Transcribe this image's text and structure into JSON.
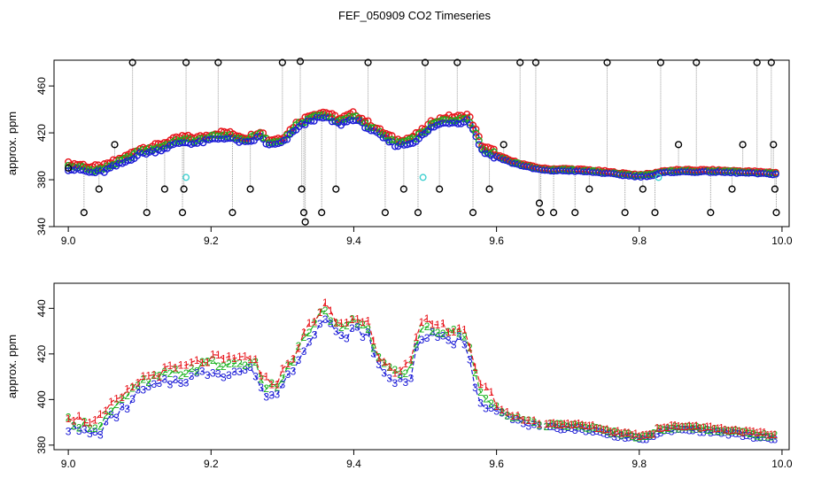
{
  "page_title": "FEF_050909  CO2 Timeseries",
  "colors": {
    "outlier": "#000000",
    "series1": "#e8141b",
    "series2": "#19b21e",
    "series3": "#1b1bd6",
    "flag": "#3fd0d0",
    "connector": "#9a9a9a"
  },
  "chart_data": [
    {
      "type": "scatter",
      "title": "FEF_050909  CO2 Timeseries",
      "xlabel": "",
      "ylabel": "approx. ppm",
      "xlim": [
        8.98,
        10.01
      ],
      "ylim": [
        340,
        482
      ],
      "xticks": [
        "9.0",
        "9.2",
        "9.4",
        "9.6",
        "9.8",
        "10.0"
      ],
      "xtick_values": [
        9.0,
        9.2,
        9.4,
        9.6,
        9.8,
        10.0
      ],
      "yticks": [
        "340",
        "380",
        "420",
        "460"
      ],
      "ytick_values": [
        340,
        380,
        420,
        460
      ],
      "series": [
        {
          "name": "1",
          "marker": "open-circle",
          "color_key": "series1"
        },
        {
          "name": "2",
          "marker": "open-circle",
          "color_key": "series2"
        },
        {
          "name": "3",
          "marker": "open-circle",
          "color_key": "series3"
        }
      ],
      "profile_x": [
        9.0,
        9.02,
        9.03,
        9.05,
        9.06,
        9.08,
        9.1,
        9.12,
        9.14,
        9.16,
        9.18,
        9.2,
        9.22,
        9.25,
        9.27,
        9.28,
        9.3,
        9.31,
        9.32,
        9.33,
        9.34,
        9.36,
        9.38,
        9.4,
        9.42,
        9.44,
        9.46,
        9.48,
        9.5,
        9.51,
        9.53,
        9.55,
        9.56,
        9.57,
        9.58,
        9.6,
        9.62,
        9.65,
        9.67,
        9.7,
        9.73,
        9.75,
        9.78,
        9.8,
        9.82,
        9.83,
        9.85,
        9.9,
        9.95,
        9.99
      ],
      "profile_y": [
        390,
        389,
        387,
        388,
        391,
        396,
        403,
        405,
        409,
        413,
        412,
        415,
        417,
        412,
        418,
        410,
        412,
        418,
        425,
        428,
        432,
        434,
        428,
        433,
        425,
        417,
        410,
        412,
        420,
        426,
        430,
        430,
        432,
        420,
        405,
        400,
        395,
        390,
        388,
        388,
        387,
        386,
        384,
        383,
        384,
        386,
        387,
        387,
        386,
        385
      ],
      "offsets": {
        "1": 4,
        "2": 1.5,
        "3": -1
      },
      "flag_points": [
        [
          9.165,
          382
        ],
        [
          9.497,
          382
        ],
        [
          9.827,
          382
        ]
      ],
      "outliers": [
        {
          "x": 9.0,
          "y": 390
        },
        {
          "x": 9.022,
          "y": 352
        },
        {
          "x": 9.043,
          "y": 372
        },
        {
          "x": 9.065,
          "y": 410
        },
        {
          "x": 9.09,
          "y": 480
        },
        {
          "x": 9.11,
          "y": 352
        },
        {
          "x": 9.135,
          "y": 372
        },
        {
          "x": 9.16,
          "y": 352
        },
        {
          "x": 9.162,
          "y": 372
        },
        {
          "x": 9.165,
          "y": 480
        },
        {
          "x": 9.21,
          "y": 480
        },
        {
          "x": 9.23,
          "y": 352
        },
        {
          "x": 9.255,
          "y": 372
        },
        {
          "x": 9.3,
          "y": 480
        },
        {
          "x": 9.325,
          "y": 481
        },
        {
          "x": 9.327,
          "y": 372
        },
        {
          "x": 9.33,
          "y": 352
        },
        {
          "x": 9.332,
          "y": 344
        },
        {
          "x": 9.355,
          "y": 352
        },
        {
          "x": 9.375,
          "y": 372
        },
        {
          "x": 9.42,
          "y": 480
        },
        {
          "x": 9.444,
          "y": 352
        },
        {
          "x": 9.47,
          "y": 372
        },
        {
          "x": 9.49,
          "y": 352
        },
        {
          "x": 9.5,
          "y": 480
        },
        {
          "x": 9.52,
          "y": 372
        },
        {
          "x": 9.545,
          "y": 480
        },
        {
          "x": 9.567,
          "y": 352
        },
        {
          "x": 9.59,
          "y": 372
        },
        {
          "x": 9.61,
          "y": 410
        },
        {
          "x": 9.633,
          "y": 480
        },
        {
          "x": 9.655,
          "y": 480
        },
        {
          "x": 9.66,
          "y": 360
        },
        {
          "x": 9.662,
          "y": 352
        },
        {
          "x": 9.68,
          "y": 352
        },
        {
          "x": 9.71,
          "y": 352
        },
        {
          "x": 9.73,
          "y": 372
        },
        {
          "x": 9.755,
          "y": 480
        },
        {
          "x": 9.78,
          "y": 352
        },
        {
          "x": 9.805,
          "y": 372
        },
        {
          "x": 9.822,
          "y": 352
        },
        {
          "x": 9.83,
          "y": 480
        },
        {
          "x": 9.855,
          "y": 410
        },
        {
          "x": 9.88,
          "y": 480
        },
        {
          "x": 9.9,
          "y": 352
        },
        {
          "x": 9.93,
          "y": 372
        },
        {
          "x": 9.945,
          "y": 410
        },
        {
          "x": 9.965,
          "y": 480
        },
        {
          "x": 9.985,
          "y": 480
        },
        {
          "x": 9.988,
          "y": 410
        },
        {
          "x": 9.99,
          "y": 372
        },
        {
          "x": 9.992,
          "y": 352
        }
      ]
    },
    {
      "type": "line",
      "title": "",
      "xlabel": "",
      "ylabel": "approx. ppm",
      "xlim": [
        8.98,
        10.01
      ],
      "ylim": [
        378,
        451
      ],
      "xticks": [
        "9.0",
        "9.2",
        "9.4",
        "9.6",
        "9.8",
        "10.0"
      ],
      "xtick_values": [
        9.0,
        9.2,
        9.4,
        9.6,
        9.8,
        10.0
      ],
      "yticks": [
        "380",
        "400",
        "420",
        "440"
      ],
      "ytick_values": [
        380,
        400,
        420,
        440
      ],
      "series": [
        {
          "name": "1",
          "marker": "1",
          "color_key": "series1"
        },
        {
          "name": "2",
          "marker": "2",
          "color_key": "series2"
        },
        {
          "name": "3",
          "marker": "3",
          "color_key": "series3"
        }
      ],
      "profile_x": [
        9.0,
        9.01,
        9.02,
        9.03,
        9.04,
        9.06,
        9.08,
        9.1,
        9.12,
        9.14,
        9.16,
        9.18,
        9.2,
        9.22,
        9.24,
        9.26,
        9.27,
        9.28,
        9.29,
        9.3,
        9.31,
        9.32,
        9.34,
        9.36,
        9.38,
        9.4,
        9.42,
        9.43,
        9.44,
        9.46,
        9.48,
        9.49,
        9.5,
        9.52,
        9.54,
        9.55,
        9.56,
        9.565,
        9.575,
        9.6,
        9.62,
        9.65,
        9.665
      ],
      "profile_y": [
        389,
        388,
        387,
        387,
        386,
        393,
        398,
        405,
        407,
        409,
        410,
        412,
        414,
        413,
        414,
        415,
        405,
        404,
        403,
        408,
        413,
        418,
        430,
        437,
        428,
        432,
        430,
        418,
        414,
        409,
        412,
        426,
        430,
        428,
        427,
        428,
        425,
        415,
        402,
        396,
        392,
        389,
        388
      ],
      "segment2_x": [
        9.67,
        9.7,
        9.73,
        9.76,
        9.78,
        9.8,
        9.82
      ],
      "segment2_y": [
        388,
        388,
        387,
        385,
        384,
        383,
        384
      ],
      "segment3_x": [
        9.825,
        9.85,
        9.88,
        9.91,
        9.94,
        9.96,
        9.99
      ],
      "segment3_y": [
        386,
        387,
        387,
        386,
        385,
        384,
        383
      ],
      "offsets": {
        "1": 4,
        "2": 2,
        "3": -1.5
      }
    }
  ]
}
